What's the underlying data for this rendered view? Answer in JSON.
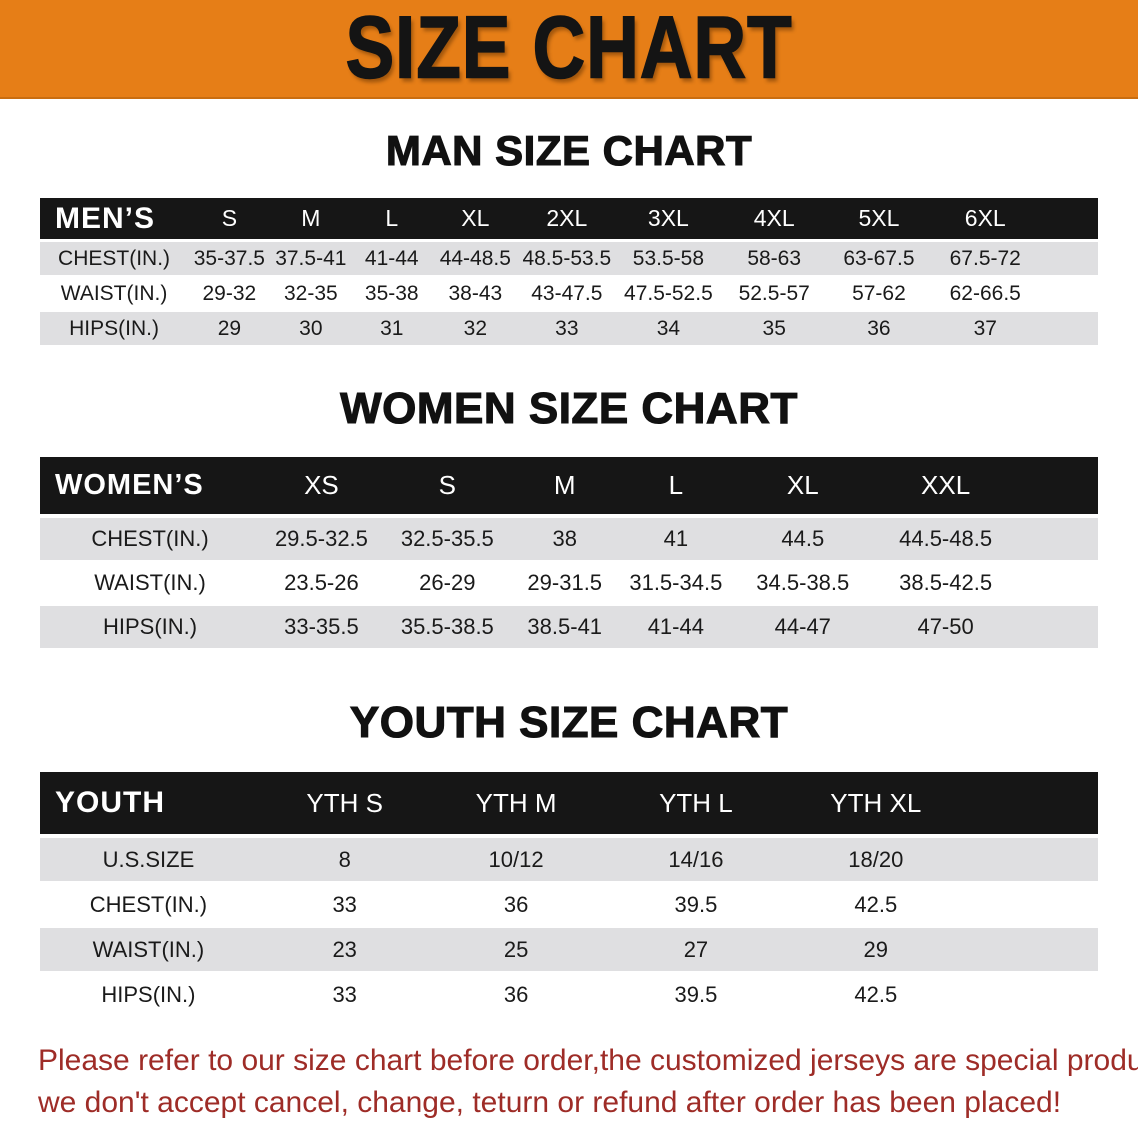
{
  "banner": {
    "title": "SIZE CHART"
  },
  "men": {
    "section_title": "MAN SIZE CHART",
    "header_label": "MEN’S",
    "columns": [
      "S",
      "M",
      "L",
      "XL",
      "2XL",
      "3XL",
      "4XL",
      "5XL",
      "6XL"
    ],
    "rows": [
      {
        "label": "CHEST(IN.)",
        "values": [
          "35-37.5",
          "37.5-41",
          "41-44",
          "44-48.5",
          "48.5-53.5",
          "53.5-58",
          "58-63",
          "63-67.5",
          "67.5-72"
        ]
      },
      {
        "label": "WAIST(IN.)",
        "values": [
          "29-32",
          "32-35",
          "35-38",
          "38-43",
          "43-47.5",
          "47.5-52.5",
          "52.5-57",
          "57-62",
          "62-66.5"
        ]
      },
      {
        "label": "HIPS(IN.)",
        "values": [
          "29",
          "30",
          "31",
          "32",
          "33",
          "34",
          "35",
          "36",
          "37"
        ]
      }
    ]
  },
  "women": {
    "section_title": "WOMEN SIZE CHART",
    "header_label": "WOMEN’S",
    "columns": [
      "XS",
      "S",
      "M",
      "L",
      "XL",
      "XXL"
    ],
    "rows": [
      {
        "label": "CHEST(IN.)",
        "values": [
          "29.5-32.5",
          "32.5-35.5",
          "38",
          "41",
          "44.5",
          "44.5-48.5"
        ]
      },
      {
        "label": "WAIST(IN.)",
        "values": [
          "23.5-26",
          "26-29",
          "29-31.5",
          "31.5-34.5",
          "34.5-38.5",
          "38.5-42.5"
        ]
      },
      {
        "label": "HIPS(IN.)",
        "values": [
          "33-35.5",
          "35.5-38.5",
          "38.5-41",
          "41-44",
          "44-47",
          "47-50"
        ]
      }
    ]
  },
  "youth": {
    "section_title": "YOUTH SIZE CHART",
    "header_label": "YOUTH",
    "columns": [
      "YTH S",
      "YTH M",
      "YTH L",
      "YTH XL"
    ],
    "rows": [
      {
        "label": "U.S.SIZE",
        "values": [
          "8",
          "10/12",
          "14/16",
          "18/20"
        ]
      },
      {
        "label": "CHEST(IN.)",
        "values": [
          "33",
          "36",
          "39.5",
          "42.5"
        ]
      },
      {
        "label": "WAIST(IN.)",
        "values": [
          "23",
          "25",
          "27",
          "29"
        ]
      },
      {
        "label": "HIPS(IN.)",
        "values": [
          "33",
          "36",
          "39.5",
          "42.5"
        ]
      }
    ]
  },
  "footer": {
    "line1": "Please refer to our size chart before order,the customized jerseys are special products,",
    "line2": "we don't accept cancel, change, teturn or refund after order has been placed!"
  },
  "colors": {
    "banner_orange": "#e67e17",
    "table_header_black": "#161616",
    "shaded_row_gray": "#dfdfe1",
    "footer_red": "#9e2c27"
  }
}
